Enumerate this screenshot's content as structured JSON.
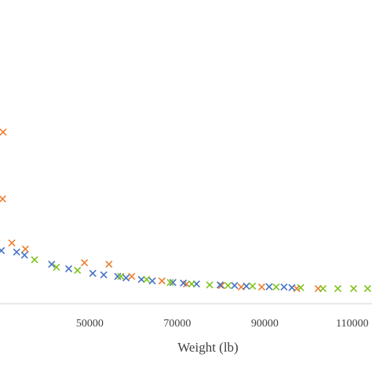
{
  "chart_data": {
    "type": "scatter",
    "title": "",
    "xlabel": "Weight (lb)",
    "ylabel": "",
    "xlim": [
      29500,
      114500
    ],
    "ylim": [
      0,
      100
    ],
    "x_ticks": [
      50000,
      70000,
      90000,
      110000
    ],
    "x_tick_labels": [
      "50000",
      "70000",
      "90000",
      "110000"
    ],
    "grid": false,
    "legend": "none",
    "marker": "x",
    "series": [
      {
        "color": "#ED7D31",
        "points": [
          {
            "x": 30200,
            "y": 56.5
          },
          {
            "x": 30100,
            "y": 34.5
          },
          {
            "x": 32200,
            "y": 20.0
          },
          {
            "x": 35300,
            "y": 18.0
          },
          {
            "x": 48800,
            "y": 13.5
          },
          {
            "x": 54400,
            "y": 13.0
          },
          {
            "x": 59600,
            "y": 9.0
          },
          {
            "x": 66500,
            "y": 7.5
          },
          {
            "x": 72100,
            "y": 6.5
          },
          {
            "x": 80100,
            "y": 6.0
          },
          {
            "x": 84600,
            "y": 5.5
          },
          {
            "x": 89300,
            "y": 5.5
          },
          {
            "x": 97300,
            "y": 5.0
          },
          {
            "x": 102200,
            "y": 5.0
          }
        ]
      },
      {
        "color": "#4472C4",
        "points": [
          {
            "x": 29800,
            "y": 17.5
          },
          {
            "x": 33300,
            "y": 17.0
          },
          {
            "x": 35100,
            "y": 16.0
          },
          {
            "x": 41300,
            "y": 13.0
          },
          {
            "x": 45200,
            "y": 11.5
          },
          {
            "x": 50700,
            "y": 10.0
          },
          {
            "x": 53200,
            "y": 9.5
          },
          {
            "x": 56400,
            "y": 9.0
          },
          {
            "x": 58300,
            "y": 8.5
          },
          {
            "x": 61800,
            "y": 8.0
          },
          {
            "x": 64300,
            "y": 7.5
          },
          {
            "x": 69000,
            "y": 7.0
          },
          {
            "x": 71400,
            "y": 6.8
          },
          {
            "x": 74400,
            "y": 6.5
          },
          {
            "x": 79800,
            "y": 6.2
          },
          {
            "x": 83100,
            "y": 6.0
          },
          {
            "x": 85800,
            "y": 5.8
          },
          {
            "x": 91000,
            "y": 5.6
          },
          {
            "x": 94400,
            "y": 5.5
          },
          {
            "x": 96200,
            "y": 5.3
          }
        ]
      },
      {
        "color": "#7FC31C",
        "points": [
          {
            "x": 37400,
            "y": 14.5
          },
          {
            "x": 42400,
            "y": 12.0
          },
          {
            "x": 47200,
            "y": 11.0
          },
          {
            "x": 57100,
            "y": 9.0
          },
          {
            "x": 63000,
            "y": 8.0
          },
          {
            "x": 68400,
            "y": 7.0
          },
          {
            "x": 73300,
            "y": 6.5
          },
          {
            "x": 77400,
            "y": 6.2
          },
          {
            "x": 81600,
            "y": 6.0
          },
          {
            "x": 87200,
            "y": 5.8
          },
          {
            "x": 92600,
            "y": 5.5
          },
          {
            "x": 98200,
            "y": 5.3
          },
          {
            "x": 103300,
            "y": 5.0
          },
          {
            "x": 106700,
            "y": 5.0
          },
          {
            "x": 110300,
            "y": 5.0
          },
          {
            "x": 113500,
            "y": 5.0
          }
        ]
      }
    ]
  }
}
